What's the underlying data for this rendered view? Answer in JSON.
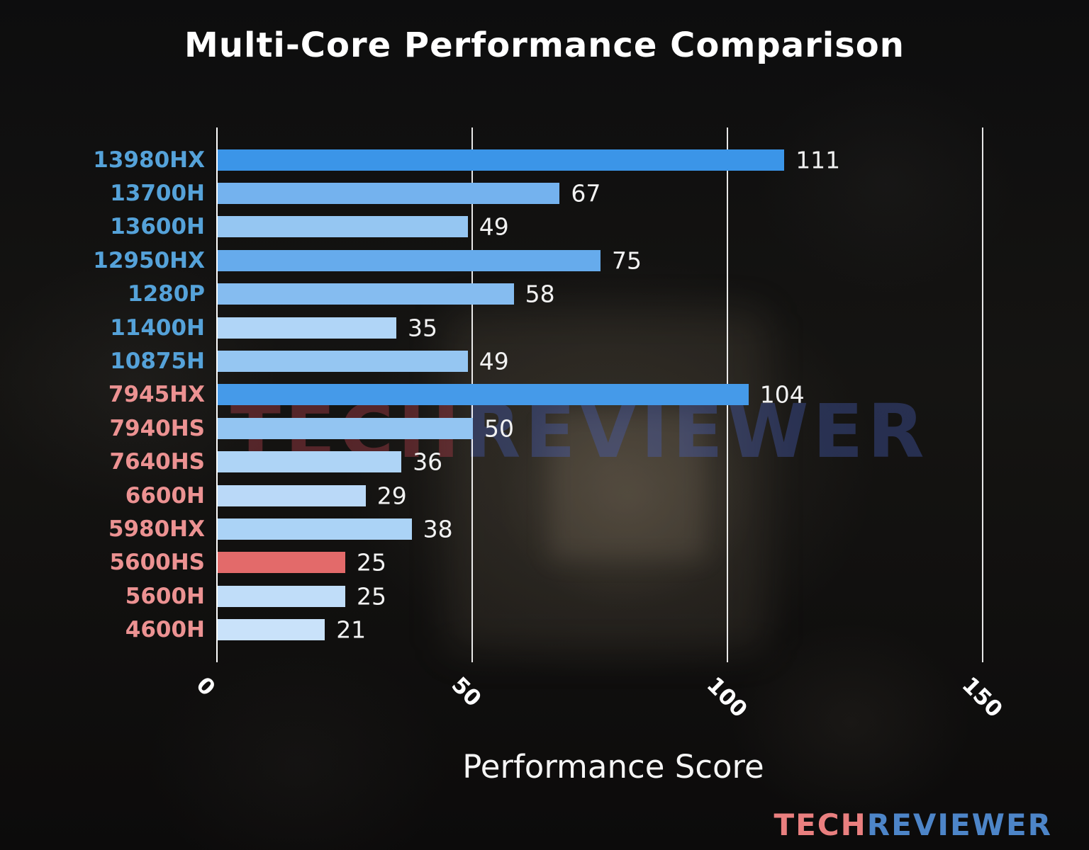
{
  "chart_data": {
    "type": "bar",
    "orientation": "horizontal",
    "title": "Multi-Core Performance Comparison",
    "xlabel": "Performance Score",
    "xlim": [
      0,
      155
    ],
    "xticks": [
      0,
      50,
      100,
      150
    ],
    "grid": true,
    "legend": "none",
    "categories": [
      "13980HX",
      "13700H",
      "13600H",
      "12950HX",
      "1280P",
      "11400H",
      "10875H",
      "7945HX",
      "7940HS",
      "7640HS",
      "6600H",
      "5980HX",
      "5600HS",
      "5600H",
      "4600H"
    ],
    "values": [
      111,
      67,
      49,
      75,
      58,
      35,
      49,
      104,
      50,
      36,
      29,
      38,
      25,
      25,
      21
    ],
    "bar_colors": [
      "#3b95e8",
      "#74b2ee",
      "#95c6f2",
      "#66abec",
      "#85bcf0",
      "#b0d5f7",
      "#95c6f2",
      "#459ae9",
      "#93c5f2",
      "#aed4f6",
      "#bad9f8",
      "#abd3f6",
      "#e36a6a",
      "#c0ddf9",
      "#c9e2fa"
    ],
    "label_colors": [
      "#55a2d9",
      "#55a2d9",
      "#55a2d9",
      "#55a2d9",
      "#55a2d9",
      "#55a2d9",
      "#55a2d9",
      "#ec9292",
      "#ec9292",
      "#ec9292",
      "#ec9292",
      "#ec9292",
      "#ec9292",
      "#ec9292",
      "#ec9292"
    ],
    "highlight_index": 12,
    "highlight_color": "#e36a6a"
  },
  "watermark": {
    "tech": "TECH",
    "reviewer": "REVIEWER"
  },
  "logo": {
    "tech": "TECH",
    "reviewer": "REVIEWER"
  }
}
